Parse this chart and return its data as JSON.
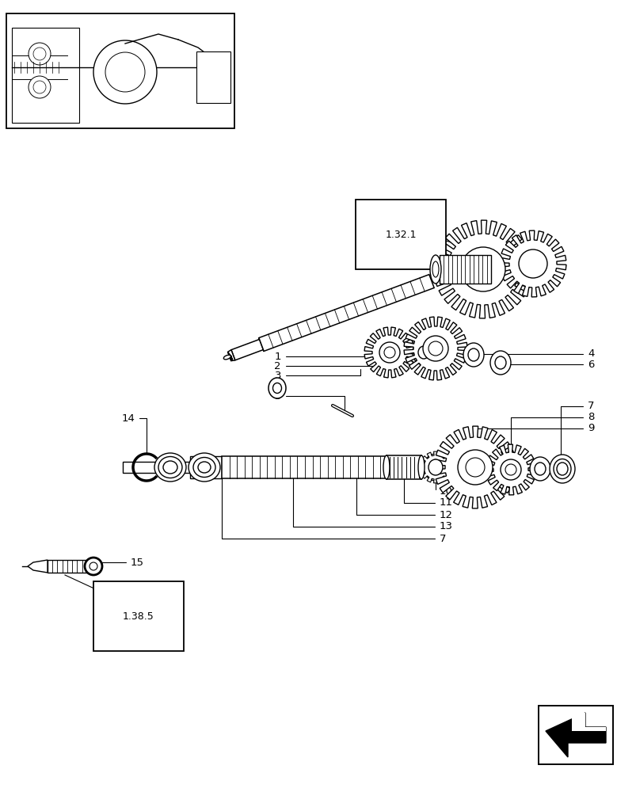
{
  "bg_color": "#ffffff",
  "fig_width": 8.04,
  "fig_height": 10.0,
  "dpi": 100,
  "label_132": "1.32.1",
  "label_138": "1.38.5",
  "black": "#000000"
}
